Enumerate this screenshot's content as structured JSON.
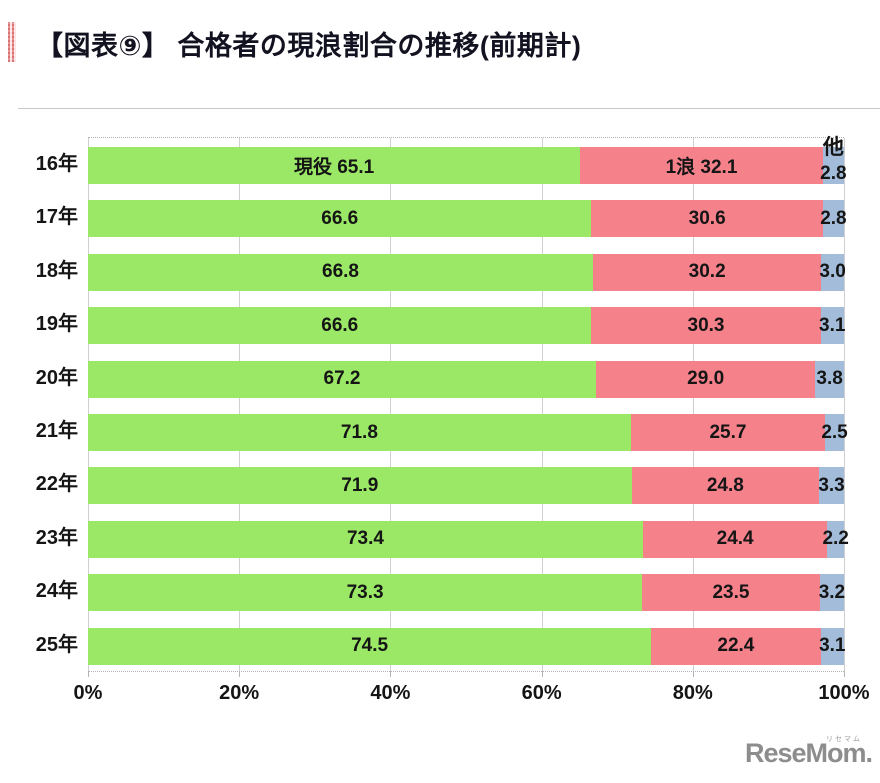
{
  "header": {
    "title": "【図表⑨】 合格者の現浪割合の推移(前期計)"
  },
  "chart_data": {
    "type": "bar",
    "stacked": true,
    "orientation": "horizontal",
    "title": "合格者の現浪割合の推移(前期計)",
    "categories": [
      "16年",
      "17年",
      "18年",
      "19年",
      "20年",
      "21年",
      "22年",
      "23年",
      "24年",
      "25年"
    ],
    "series": [
      {
        "name": "現役",
        "color": "#9ae866",
        "values": [
          65.1,
          66.6,
          66.8,
          66.6,
          67.2,
          71.8,
          71.9,
          73.4,
          73.3,
          74.5
        ]
      },
      {
        "name": "1浪",
        "color": "#f5818b",
        "values": [
          32.1,
          30.6,
          30.2,
          30.3,
          29.0,
          25.7,
          24.8,
          24.4,
          23.5,
          22.4
        ]
      },
      {
        "name": "他",
        "color": "#a2bcda",
        "values": [
          2.8,
          2.8,
          3.0,
          3.1,
          3.8,
          2.5,
          3.3,
          2.2,
          3.2,
          3.1
        ]
      }
    ],
    "xlim": [
      0,
      100
    ],
    "x_tick_labels": [
      "0%",
      "20%",
      "40%",
      "60%",
      "80%",
      "100%"
    ],
    "x_tick_values": [
      0,
      20,
      40,
      60,
      80,
      100
    ],
    "grid": true,
    "legend": "none",
    "first_row_inline_series_labels": true,
    "grid_color": "#cfcfcf",
    "value_label_color": "#151515"
  },
  "logo": {
    "text": "ReseMom.",
    "ruby": "リセマム"
  }
}
